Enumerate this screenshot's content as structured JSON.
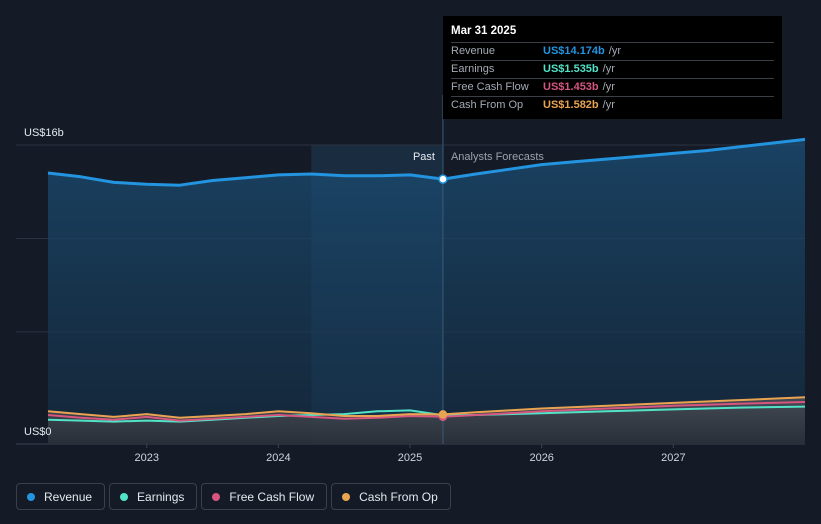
{
  "chart_data": {
    "type": "area",
    "ylabel_top": "US$16b",
    "ylabel_bottom": "US$0",
    "ylim": [
      0,
      16
    ],
    "xlim": [
      2022.25,
      2028.0
    ],
    "x_ticks": [
      "2023",
      "2024",
      "2025",
      "2026",
      "2027"
    ],
    "divider_x": 2025.25,
    "past_label": "Past",
    "forecast_label": "Analysts Forecasts",
    "series": [
      {
        "name": "Revenue",
        "color": "#2394df",
        "points": [
          [
            2022.25,
            14.5
          ],
          [
            2022.5,
            14.3
          ],
          [
            2022.75,
            14.0
          ],
          [
            2023.0,
            13.9
          ],
          [
            2023.25,
            13.85
          ],
          [
            2023.5,
            14.1
          ],
          [
            2023.75,
            14.25
          ],
          [
            2024.0,
            14.4
          ],
          [
            2024.25,
            14.45
          ],
          [
            2024.5,
            14.35
          ],
          [
            2024.75,
            14.35
          ],
          [
            2025.0,
            14.4
          ],
          [
            2025.25,
            14.174
          ],
          [
            2025.5,
            14.45
          ],
          [
            2025.75,
            14.7
          ],
          [
            2026.0,
            14.95
          ],
          [
            2026.25,
            15.1
          ],
          [
            2026.5,
            15.25
          ],
          [
            2026.75,
            15.4
          ],
          [
            2027.0,
            15.55
          ],
          [
            2027.25,
            15.7
          ],
          [
            2027.5,
            15.9
          ],
          [
            2027.75,
            16.1
          ],
          [
            2028.0,
            16.3
          ]
        ]
      },
      {
        "name": "Earnings",
        "color": "#52e3c6",
        "points": [
          [
            2022.25,
            1.3
          ],
          [
            2022.5,
            1.25
          ],
          [
            2022.75,
            1.2
          ],
          [
            2023.0,
            1.25
          ],
          [
            2023.25,
            1.2
          ],
          [
            2023.5,
            1.3
          ],
          [
            2023.75,
            1.4
          ],
          [
            2024.0,
            1.5
          ],
          [
            2024.25,
            1.55
          ],
          [
            2024.5,
            1.6
          ],
          [
            2024.75,
            1.75
          ],
          [
            2025.0,
            1.8
          ],
          [
            2025.25,
            1.535
          ],
          [
            2025.5,
            1.55
          ],
          [
            2025.75,
            1.6
          ],
          [
            2026.0,
            1.65
          ],
          [
            2026.5,
            1.75
          ],
          [
            2027.0,
            1.85
          ],
          [
            2027.5,
            1.95
          ],
          [
            2028.0,
            2.0
          ]
        ]
      },
      {
        "name": "Free Cash Flow",
        "color": "#d6567f",
        "points": [
          [
            2022.25,
            1.55
          ],
          [
            2022.5,
            1.4
          ],
          [
            2022.75,
            1.3
          ],
          [
            2023.0,
            1.45
          ],
          [
            2023.25,
            1.25
          ],
          [
            2023.5,
            1.35
          ],
          [
            2023.75,
            1.45
          ],
          [
            2024.0,
            1.55
          ],
          [
            2024.25,
            1.45
          ],
          [
            2024.5,
            1.35
          ],
          [
            2024.75,
            1.4
          ],
          [
            2025.0,
            1.5
          ],
          [
            2025.25,
            1.453
          ],
          [
            2025.5,
            1.55
          ],
          [
            2025.75,
            1.65
          ],
          [
            2026.0,
            1.75
          ],
          [
            2026.5,
            1.9
          ],
          [
            2027.0,
            2.05
          ],
          [
            2027.5,
            2.15
          ],
          [
            2028.0,
            2.25
          ]
        ]
      },
      {
        "name": "Cash From Op",
        "color": "#eaa451",
        "points": [
          [
            2022.25,
            1.75
          ],
          [
            2022.5,
            1.6
          ],
          [
            2022.75,
            1.45
          ],
          [
            2023.0,
            1.6
          ],
          [
            2023.25,
            1.4
          ],
          [
            2023.5,
            1.5
          ],
          [
            2023.75,
            1.6
          ],
          [
            2024.0,
            1.75
          ],
          [
            2024.25,
            1.65
          ],
          [
            2024.5,
            1.5
          ],
          [
            2024.75,
            1.5
          ],
          [
            2025.0,
            1.6
          ],
          [
            2025.25,
            1.582
          ],
          [
            2025.5,
            1.7
          ],
          [
            2025.75,
            1.8
          ],
          [
            2026.0,
            1.9
          ],
          [
            2026.5,
            2.05
          ],
          [
            2027.0,
            2.2
          ],
          [
            2027.5,
            2.35
          ],
          [
            2028.0,
            2.5
          ]
        ]
      }
    ]
  },
  "tooltip": {
    "date": "Mar 31 2025",
    "unit": "/yr",
    "rows": [
      {
        "label": "Revenue",
        "value": "US$14.174b",
        "color": "#2394df"
      },
      {
        "label": "Earnings",
        "value": "US$1.535b",
        "color": "#52e3c6"
      },
      {
        "label": "Free Cash Flow",
        "value": "US$1.453b",
        "color": "#d6567f"
      },
      {
        "label": "Cash From Op",
        "value": "US$1.582b",
        "color": "#eaa451"
      }
    ]
  },
  "legend": [
    {
      "label": "Revenue",
      "color": "#2394df"
    },
    {
      "label": "Earnings",
      "color": "#52e3c6"
    },
    {
      "label": "Free Cash Flow",
      "color": "#d6567f"
    },
    {
      "label": "Cash From Op",
      "color": "#eaa451"
    }
  ]
}
